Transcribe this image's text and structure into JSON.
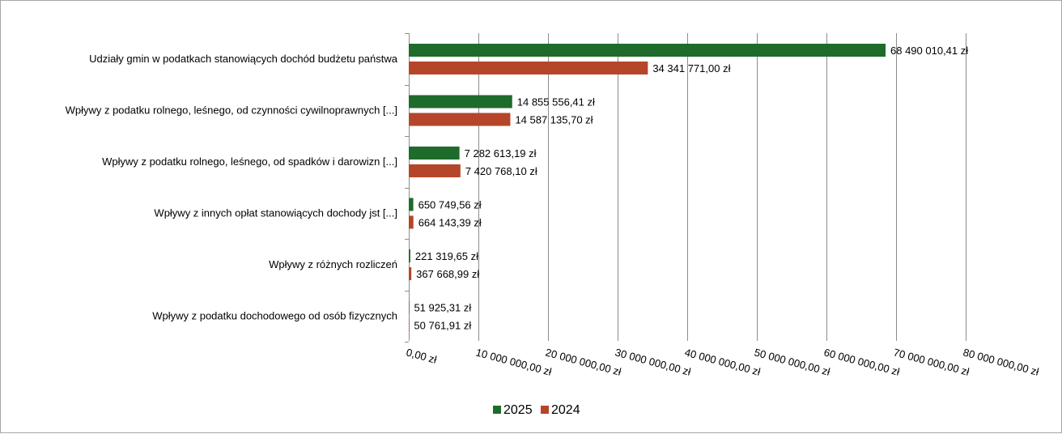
{
  "chart_data": {
    "type": "bar",
    "orientation": "horizontal",
    "title": "",
    "xlabel": "",
    "ylabel": "",
    "categories": [
      "Udziały gmin w podatkach stanowiących dochód budżetu państwa",
      "Wpływy z podatku rolnego, leśnego, od czynności cywilnoprawnych [...]",
      "Wpływy z podatku rolnego, leśnego, od spadków i darowizn [...]",
      "Wpływy z innych opłat stanowiących dochody jst [...]",
      "Wpływy z różnych rozliczeń",
      "Wpływy z podatku dochodowego od osób fizycznych"
    ],
    "series": [
      {
        "name": "2025",
        "color": "#1e6b2b",
        "values": [
          68490010.41,
          14855556.41,
          7282613.19,
          650749.56,
          221319.65,
          51925.31
        ],
        "labels": [
          "68 490 010,41 zł",
          "14 855 556,41 zł",
          "7 282 613,19 zł",
          "650 749,56 zł",
          "221 319,65 zł",
          "51 925,31 zł"
        ]
      },
      {
        "name": "2024",
        "color": "#b5462a",
        "values": [
          34341771.0,
          14587135.7,
          7420768.1,
          664143.39,
          367668.99,
          50761.91
        ],
        "labels": [
          "34 341 771,00 zł",
          "14 587 135,70 zł",
          "7 420 768,10 zł",
          "664 143,39 zł",
          "367 668,99 zł",
          "50 761,91 zł"
        ]
      }
    ],
    "xlim": [
      0,
      80000000
    ],
    "x_ticks": [
      0,
      10000000,
      20000000,
      30000000,
      40000000,
      50000000,
      60000000,
      70000000,
      80000000
    ],
    "x_tick_labels": [
      "0,00 zł",
      "10 000 000,00 zł",
      "20 000 000,00 zł",
      "30 000 000,00 zł",
      "40 000 000,00 zł",
      "50 000 000,00 zł",
      "60 000 000,00 zł",
      "70 000 000,00 zł",
      "80 000 000,00 zł"
    ],
    "grid": true,
    "legend_position": "bottom",
    "gridline_color": "#8c8c8c"
  }
}
